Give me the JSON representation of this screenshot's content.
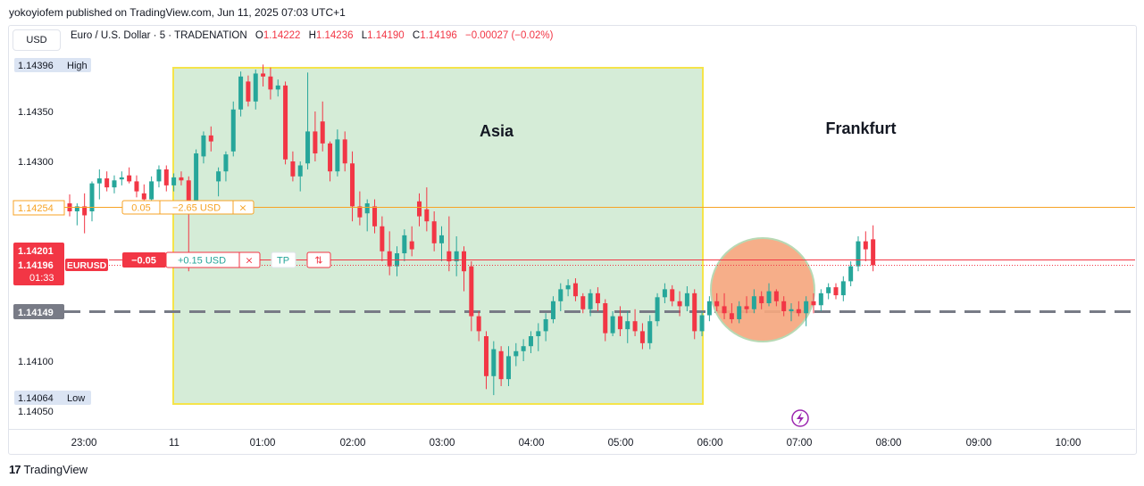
{
  "publisher": "yokoyiofem published on TradingView.com, Jun 11, 2025 07:03 UTC+1",
  "currency_button": "USD",
  "legend": {
    "symbol": "Euro / U.S. Dollar · 5 · TRADENATION",
    "open_label": "O",
    "open": "1.14222",
    "high_label": "H",
    "high": "1.14236",
    "low_label": "L",
    "low": "1.14190",
    "close_label": "C",
    "close": "1.14196",
    "change": "−0.00027 (−0.02%)"
  },
  "footer": {
    "logo_mark": "17",
    "logo_text": "TradingView"
  },
  "colors": {
    "up": "#26a69a",
    "down": "#f23645",
    "asia_fill": "#d5ecd7",
    "asia_border": "#f5e44a",
    "orange_line": "#f7a325",
    "red_line": "#f23645",
    "dashed": "#787b86",
    "circle_fill": "#f5a77f",
    "circle_border": "#b7d9b4",
    "flash": "#9c27b0"
  },
  "chart_data": {
    "type": "candlestick",
    "symbol_tag": "EURUSD",
    "timeframe": "5",
    "y_ticks": [
      "1.14350",
      "1.14300",
      "1.14100",
      "1.14050"
    ],
    "x_ticks": [
      "23:00",
      "11",
      "01:00",
      "02:00",
      "03:00",
      "04:00",
      "05:00",
      "06:00",
      "07:00",
      "08:00",
      "09:00",
      "10:00"
    ],
    "y_range": [
      1.1404,
      1.1442
    ],
    "markers": {
      "high": {
        "label": "High",
        "value": "1.14396"
      },
      "low": {
        "label": "Low",
        "value": "1.14064"
      },
      "last_price": "1.14201",
      "eurusd_price": "1.14196",
      "countdown": "01:33",
      "dashed_level": "1.14149"
    },
    "orange_level": {
      "price": 1.14254,
      "label": "1.14254",
      "qty": "0.05",
      "pnl": "−2.65 USD",
      "close": "×"
    },
    "red_level": {
      "price": 1.142,
      "qty": "−0.05",
      "pnl": "+0.15 USD",
      "close": "×",
      "tp": "TP",
      "reverse": "⇅"
    },
    "annotations": [
      "Asia",
      "Frankfurt"
    ],
    "candles": [
      [
        1.14258,
        1.14267,
        1.14245,
        1.1425
      ],
      [
        1.1425,
        1.14258,
        1.14236,
        1.14255
      ],
      [
        1.14255,
        1.14268,
        1.14228,
        1.14246
      ],
      [
        1.1425,
        1.1428,
        1.1424,
        1.14278
      ],
      [
        1.14278,
        1.14292,
        1.14262,
        1.14283
      ],
      [
        1.14283,
        1.1429,
        1.1427,
        1.14274
      ],
      [
        1.14274,
        1.14286,
        1.14268,
        1.14281
      ],
      [
        1.14282,
        1.1429,
        1.14276,
        1.14284
      ],
      [
        1.14286,
        1.14294,
        1.14278,
        1.1428
      ],
      [
        1.1428,
        1.14286,
        1.14264,
        1.1427
      ],
      [
        1.14268,
        1.14277,
        1.14256,
        1.14262
      ],
      [
        1.14262,
        1.14285,
        1.14258,
        1.1428
      ],
      [
        1.1428,
        1.14296,
        1.14274,
        1.14292
      ],
      [
        1.14292,
        1.14296,
        1.1427,
        1.14276
      ],
      [
        1.14276,
        1.14288,
        1.1427,
        1.14284
      ],
      [
        1.14284,
        1.1429,
        1.14276,
        1.14281
      ],
      [
        1.14281,
        1.14285,
        1.1419,
        1.14255
      ],
      [
        1.14255,
        1.14312,
        1.1425,
        1.14308
      ],
      [
        1.14305,
        1.1433,
        1.14298,
        1.14326
      ],
      [
        1.14326,
        1.14335,
        1.1431,
        1.1432
      ],
      [
        1.1428,
        1.14294,
        1.14265,
        1.1429
      ],
      [
        1.1429,
        1.1431,
        1.1428,
        1.14307
      ],
      [
        1.1431,
        1.1436,
        1.14305,
        1.14352
      ],
      [
        1.14352,
        1.1439,
        1.14345,
        1.14385
      ],
      [
        1.1438,
        1.14386,
        1.14355,
        1.1436
      ],
      [
        1.1436,
        1.14392,
        1.14352,
        1.14388
      ],
      [
        1.14388,
        1.14397,
        1.14375,
        1.14385
      ],
      [
        1.14385,
        1.14394,
        1.14362,
        1.14372
      ],
      [
        1.14372,
        1.14382,
        1.14365,
        1.14376
      ],
      [
        1.14376,
        1.1438,
        1.14297,
        1.14302
      ],
      [
        1.143,
        1.1431,
        1.1428,
        1.14285
      ],
      [
        1.14285,
        1.143,
        1.1427,
        1.14296
      ],
      [
        1.14298,
        1.14389,
        1.14292,
        1.1433
      ],
      [
        1.1433,
        1.1435,
        1.143,
        1.14308
      ],
      [
        1.1434,
        1.1436,
        1.1431,
        1.14318
      ],
      [
        1.14318,
        1.1432,
        1.1428,
        1.1429
      ],
      [
        1.1429,
        1.14332,
        1.14285,
        1.14322
      ],
      [
        1.14322,
        1.1433,
        1.1429,
        1.14298
      ],
      [
        1.14298,
        1.1431,
        1.1424,
        1.14255
      ],
      [
        1.14255,
        1.1427,
        1.14236,
        1.14244
      ],
      [
        1.14248,
        1.14262,
        1.1423,
        1.14258
      ],
      [
        1.14255,
        1.14262,
        1.14228,
        1.14235
      ],
      [
        1.14235,
        1.14245,
        1.142,
        1.1421
      ],
      [
        1.1421,
        1.1423,
        1.14186,
        1.14195
      ],
      [
        1.14195,
        1.14215,
        1.14185,
        1.14208
      ],
      [
        1.14208,
        1.14232,
        1.142,
        1.14226
      ],
      [
        1.1422,
        1.14235,
        1.14205,
        1.14212
      ],
      [
        1.1426,
        1.14268,
        1.14235,
        1.14245
      ],
      [
        1.14252,
        1.14274,
        1.1423,
        1.1424
      ],
      [
        1.1424,
        1.1425,
        1.1421,
        1.14218
      ],
      [
        1.14218,
        1.14235,
        1.142,
        1.14226
      ],
      [
        1.1421,
        1.14245,
        1.1419,
        1.142
      ],
      [
        1.142,
        1.14225,
        1.14185,
        1.1421
      ],
      [
        1.1421,
        1.14215,
        1.1417,
        1.1419
      ],
      [
        1.14195,
        1.142,
        1.1413,
        1.14145
      ],
      [
        1.14145,
        1.1415,
        1.1412,
        1.1413
      ],
      [
        1.14125,
        1.1413,
        1.14072,
        1.14085
      ],
      [
        1.14085,
        1.1412,
        1.14066,
        1.14112
      ],
      [
        1.1411,
        1.14115,
        1.14075,
        1.14082
      ],
      [
        1.14082,
        1.14115,
        1.14075,
        1.14105
      ],
      [
        1.14105,
        1.14118,
        1.14095,
        1.1411
      ],
      [
        1.1411,
        1.14122,
        1.141,
        1.14115
      ],
      [
        1.14115,
        1.1413,
        1.14108,
        1.14125
      ],
      [
        1.14125,
        1.14138,
        1.1411,
        1.1413
      ],
      [
        1.1413,
        1.14148,
        1.1412,
        1.14142
      ],
      [
        1.14142,
        1.14165,
        1.14138,
        1.1416
      ],
      [
        1.1416,
        1.14178,
        1.1415,
        1.14172
      ],
      [
        1.14172,
        1.14182,
        1.14165,
        1.14176
      ],
      [
        1.14178,
        1.14183,
        1.1416,
        1.14165
      ],
      [
        1.14165,
        1.14168,
        1.14148,
        1.14152
      ],
      [
        1.14152,
        1.14172,
        1.14145,
        1.14168
      ],
      [
        1.14168,
        1.14174,
        1.1415,
        1.14158
      ],
      [
        1.14158,
        1.14162,
        1.1412,
        1.14128
      ],
      [
        1.14128,
        1.1415,
        1.14125,
        1.14145
      ],
      [
        1.14145,
        1.14155,
        1.14125,
        1.14132
      ],
      [
        1.14132,
        1.1415,
        1.14118,
        1.1414
      ],
      [
        1.1414,
        1.14152,
        1.14125,
        1.1413
      ],
      [
        1.1413,
        1.14138,
        1.14112,
        1.14118
      ],
      [
        1.14118,
        1.14146,
        1.14112,
        1.1414
      ],
      [
        1.1414,
        1.14168,
        1.14135,
        1.14164
      ],
      [
        1.14164,
        1.14178,
        1.14158,
        1.14172
      ],
      [
        1.14172,
        1.14176,
        1.14155,
        1.1416
      ],
      [
        1.1416,
        1.1417,
        1.14145,
        1.14155
      ],
      [
        1.14155,
        1.14175,
        1.1415,
        1.14168
      ],
      [
        1.14168,
        1.14172,
        1.14122,
        1.1413
      ],
      [
        1.1413,
        1.1415,
        1.14125,
        1.14146
      ],
      [
        1.14146,
        1.14165,
        1.1414,
        1.1416
      ],
      [
        1.1416,
        1.14168,
        1.1415,
        1.14155
      ],
      [
        1.14155,
        1.14168,
        1.14142,
        1.14148
      ],
      [
        1.14148,
        1.14158,
        1.14138,
        1.14142
      ],
      [
        1.14142,
        1.1416,
        1.14138,
        1.14155
      ],
      [
        1.14155,
        1.14165,
        1.14148,
        1.14152
      ],
      [
        1.14152,
        1.14172,
        1.14148,
        1.14165
      ],
      [
        1.14165,
        1.1417,
        1.14152,
        1.14158
      ],
      [
        1.14158,
        1.14178,
        1.14155,
        1.1417
      ],
      [
        1.1417,
        1.14172,
        1.14155,
        1.1416
      ],
      [
        1.1416,
        1.14165,
        1.14145,
        1.1415
      ],
      [
        1.1415,
        1.14158,
        1.1414,
        1.14152
      ],
      [
        1.14152,
        1.1416,
        1.14145,
        1.14148
      ],
      [
        1.14148,
        1.14165,
        1.14135,
        1.1416
      ],
      [
        1.1416,
        1.14168,
        1.14148,
        1.14156
      ],
      [
        1.14156,
        1.14172,
        1.1415,
        1.14168
      ],
      [
        1.14168,
        1.14178,
        1.14162,
        1.14174
      ],
      [
        1.14174,
        1.14178,
        1.14162,
        1.14166
      ],
      [
        1.14166,
        1.14185,
        1.1416,
        1.1418
      ],
      [
        1.1418,
        1.142,
        1.14175,
        1.14195
      ],
      [
        1.14195,
        1.14225,
        1.1419,
        1.1422
      ],
      [
        1.1422,
        1.1423,
        1.142,
        1.14212
      ],
      [
        1.14222,
        1.14236,
        1.1419,
        1.14196
      ]
    ]
  }
}
